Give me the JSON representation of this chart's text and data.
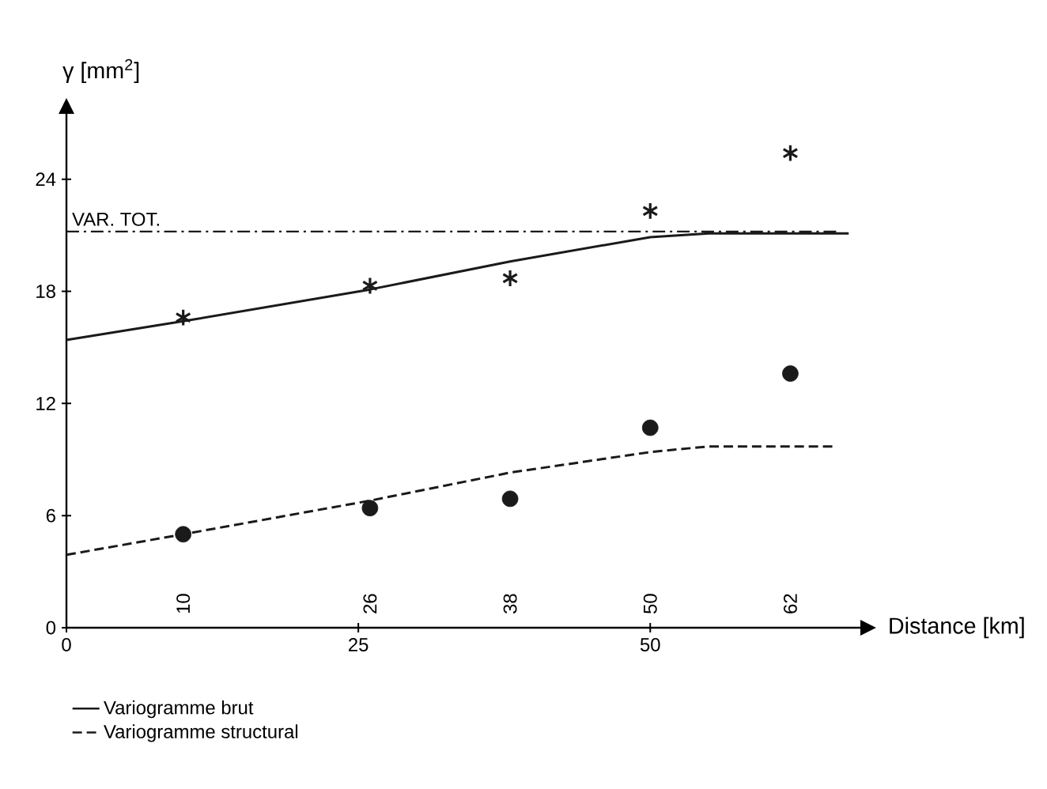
{
  "chart_data": {
    "type": "line",
    "xlabel": "Distance [km]",
    "ylabel": "γ [mm$^{2}$]",
    "xlim": [
      0,
      68
    ],
    "ylim": [
      0,
      27.5
    ],
    "xticks": [
      0,
      25,
      50
    ],
    "yticks": [
      0,
      6,
      12,
      18,
      24
    ],
    "x2lim": [
      0,
      68
    ],
    "x2ticks": [
      10,
      26,
      38,
      50,
      62
    ],
    "grid": false,
    "legend": "bottom",
    "series": [
      {
        "type": "scatter",
        "marker": "cross",
        "color": "#1a1a1a",
        "x": [
          10,
          26,
          38,
          50,
          62
        ],
        "values": [
          16.6,
          18.3,
          18.7,
          22.3,
          25.4
        ]
      },
      {
        "name": "Variogramme brut",
        "line_style": "solid",
        "marker": "none",
        "color": "#1a1a1a",
        "x": [
          0,
          10,
          26,
          38,
          50,
          55,
          67
        ],
        "values": [
          15.4,
          16.4,
          18.1,
          19.6,
          20.9,
          21.1,
          21.1
        ]
      },
      {
        "type": "scatter",
        "marker": "circle",
        "color": "#1a1a1a",
        "x": [
          10,
          26,
          38,
          50,
          62
        ],
        "values": [
          5.0,
          6.4,
          6.9,
          10.7,
          13.6
        ]
      },
      {
        "name": "Variogramme structural",
        "line_style": "dashed",
        "marker": "none",
        "color": "#1a1a1a",
        "x": [
          0,
          10,
          26,
          38,
          50,
          55,
          66
        ],
        "values": [
          3.9,
          5.0,
          6.8,
          8.3,
          9.4,
          9.7,
          9.7
        ]
      }
    ],
    "ref_lines": [
      {
        "axis": "y",
        "value": 21.2,
        "label": "VAR. TOT.",
        "line_style": "dashdotted",
        "color": "#1a1a1a"
      }
    ]
  }
}
